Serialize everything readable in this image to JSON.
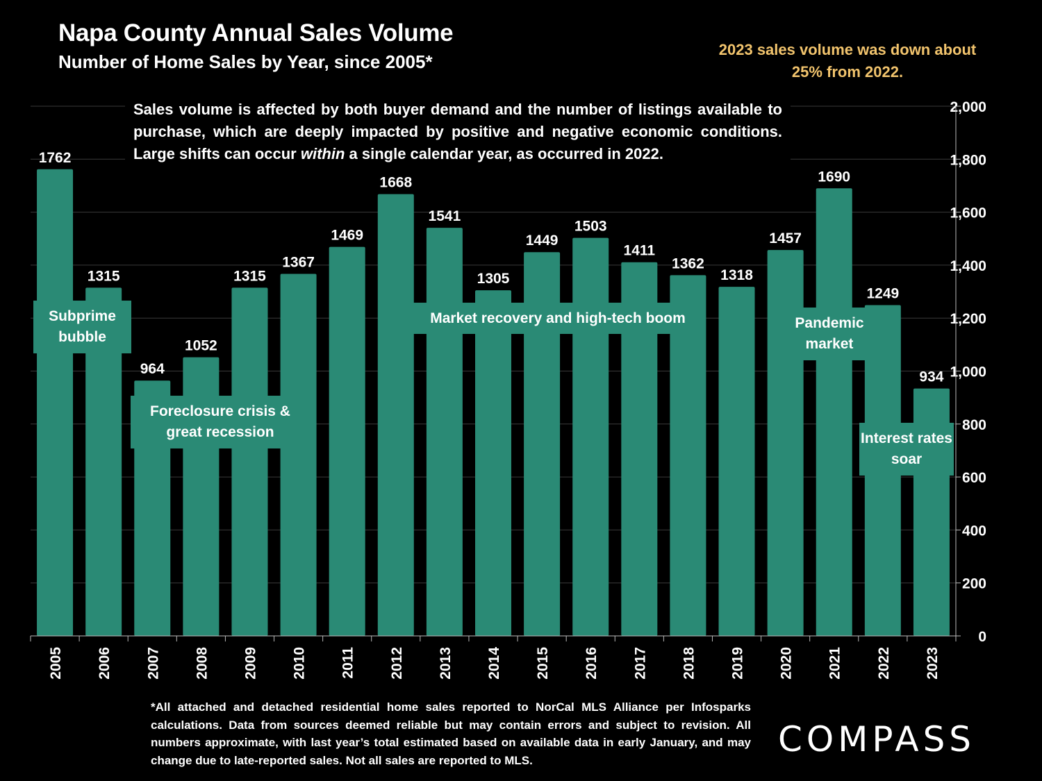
{
  "header": {
    "title": "Napa County Annual Sales Volume",
    "subtitle": "Number of Home Sales by Year, since 2005*",
    "callout": "2023 sales volume was down about 25% from 2022."
  },
  "description": {
    "before": "Sales volume is affected by both buyer demand and the number of listings available to purchase, which are deeply impacted by positive and negative economic conditions. Large shifts can occur ",
    "emphasis": "within",
    "after": " a single calendar year, as occurred in 2022."
  },
  "annotations": {
    "subprime": "Subprime bubble",
    "foreclosure": "Foreclosure crisis & great recession",
    "recovery": "Market recovery and high-tech boom",
    "pandemic": "Pandemic market",
    "rates": "Interest rates soar"
  },
  "chart_data": {
    "type": "bar",
    "categories": [
      "2005",
      "2006",
      "2007",
      "2008",
      "2009",
      "2010",
      "2011",
      "2012",
      "2013",
      "2014",
      "2015",
      "2016",
      "2017",
      "2018",
      "2019",
      "2020",
      "2021",
      "2022",
      "2023"
    ],
    "values": [
      1762,
      1315,
      964,
      1052,
      1315,
      1367,
      1469,
      1668,
      1541,
      1305,
      1449,
      1503,
      1411,
      1362,
      1318,
      1457,
      1690,
      1249,
      934
    ],
    "ylim": [
      0,
      2000
    ],
    "yticks": [
      0,
      200,
      400,
      600,
      800,
      1000,
      1200,
      1400,
      1600,
      1800,
      2000
    ],
    "ytick_labels": [
      "0",
      "200",
      "400",
      "600",
      "800",
      "1,000",
      "1,200",
      "1,400",
      "1,600",
      "1,800",
      "2,000"
    ],
    "y_axis_position": "right",
    "grid": true,
    "bar_color": "#2a8a75",
    "xlabel": "",
    "ylabel": ""
  },
  "footnote": "*All attached and detached residential home sales reported to NorCal MLS Alliance per Infosparks calculations. Data from sources deemed reliable but may contain errors and subject to revision. All numbers approximate, with last year’s total estimated based on available data in early January, and may change due to late-reported sales. Not all sales are reported to MLS.",
  "brand": {
    "logo": "COMPASS"
  }
}
